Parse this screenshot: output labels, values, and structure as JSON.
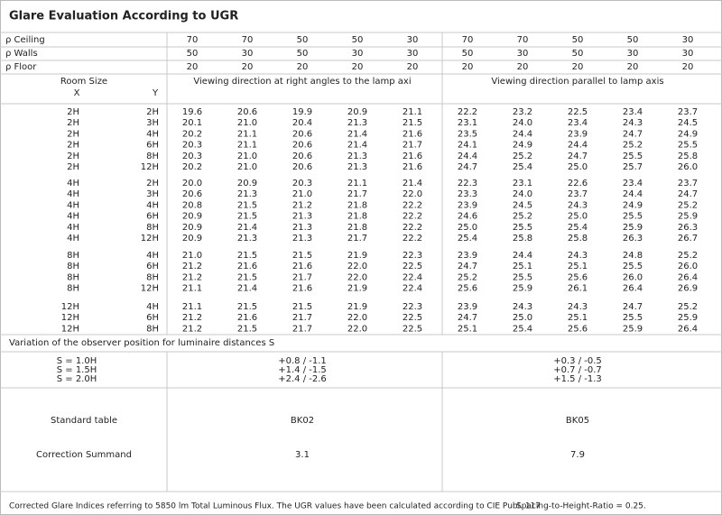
{
  "title": "Glare Evaluation According to UGR",
  "reflectances": [
    {
      "label": "ρ Ceiling",
      "values": [
        "70",
        "70",
        "50",
        "50",
        "30",
        "70",
        "70",
        "50",
        "50",
        "30"
      ]
    },
    {
      "label": "ρ Walls",
      "values": [
        "50",
        "30",
        "50",
        "30",
        "30",
        "50",
        "30",
        "50",
        "30",
        "30"
      ]
    },
    {
      "label": "ρ Floor",
      "values": [
        "20",
        "20",
        "20",
        "20",
        "20",
        "20",
        "20",
        "20",
        "20",
        "20"
      ]
    }
  ],
  "header": {
    "room_size": "Room Size",
    "x": "X",
    "y": "Y",
    "perpendicular": "Viewing direction at right angles to the lamp axi",
    "parallel": "Viewing direction parallel to lamp axis"
  },
  "blocks": [
    [
      {
        "x": "2H",
        "y": "2H",
        "values": [
          "19.6",
          "20.6",
          "19.9",
          "20.9",
          "21.1",
          "22.2",
          "23.2",
          "22.5",
          "23.4",
          "23.7"
        ]
      },
      {
        "x": "2H",
        "y": "3H",
        "values": [
          "20.1",
          "21.0",
          "20.4",
          "21.3",
          "21.5",
          "23.1",
          "24.0",
          "23.4",
          "24.3",
          "24.5"
        ]
      },
      {
        "x": "2H",
        "y": "4H",
        "values": [
          "20.2",
          "21.1",
          "20.6",
          "21.4",
          "21.6",
          "23.5",
          "24.4",
          "23.9",
          "24.7",
          "24.9"
        ]
      },
      {
        "x": "2H",
        "y": "6H",
        "values": [
          "20.3",
          "21.1",
          "20.6",
          "21.4",
          "21.7",
          "24.1",
          "24.9",
          "24.4",
          "25.2",
          "25.5"
        ]
      },
      {
        "x": "2H",
        "y": "8H",
        "values": [
          "20.3",
          "21.0",
          "20.6",
          "21.3",
          "21.6",
          "24.4",
          "25.2",
          "24.7",
          "25.5",
          "25.8"
        ]
      },
      {
        "x": "2H",
        "y": "12H",
        "values": [
          "20.2",
          "21.0",
          "20.6",
          "21.3",
          "21.6",
          "24.7",
          "25.4",
          "25.0",
          "25.7",
          "26.0"
        ]
      }
    ],
    [
      {
        "x": "4H",
        "y": "2H",
        "values": [
          "20.0",
          "20.9",
          "20.3",
          "21.1",
          "21.4",
          "22.3",
          "23.1",
          "22.6",
          "23.4",
          "23.7"
        ]
      },
      {
        "x": "4H",
        "y": "3H",
        "values": [
          "20.6",
          "21.3",
          "21.0",
          "21.7",
          "22.0",
          "23.3",
          "24.0",
          "23.7",
          "24.4",
          "24.7"
        ]
      },
      {
        "x": "4H",
        "y": "4H",
        "values": [
          "20.8",
          "21.5",
          "21.2",
          "21.8",
          "22.2",
          "23.9",
          "24.5",
          "24.3",
          "24.9",
          "25.2"
        ]
      },
      {
        "x": "4H",
        "y": "6H",
        "values": [
          "20.9",
          "21.5",
          "21.3",
          "21.8",
          "22.2",
          "24.6",
          "25.2",
          "25.0",
          "25.5",
          "25.9"
        ]
      },
      {
        "x": "4H",
        "y": "8H",
        "values": [
          "20.9",
          "21.4",
          "21.3",
          "21.8",
          "22.2",
          "25.0",
          "25.5",
          "25.4",
          "25.9",
          "26.3"
        ]
      },
      {
        "x": "4H",
        "y": "12H",
        "values": [
          "20.9",
          "21.3",
          "21.3",
          "21.7",
          "22.2",
          "25.4",
          "25.8",
          "25.8",
          "26.3",
          "26.7"
        ]
      }
    ],
    [
      {
        "x": "8H",
        "y": "4H",
        "values": [
          "21.0",
          "21.5",
          "21.5",
          "21.9",
          "22.3",
          "23.9",
          "24.4",
          "24.3",
          "24.8",
          "25.2"
        ]
      },
      {
        "x": "8H",
        "y": "6H",
        "values": [
          "21.2",
          "21.6",
          "21.6",
          "22.0",
          "22.5",
          "24.7",
          "25.1",
          "25.1",
          "25.5",
          "26.0"
        ]
      },
      {
        "x": "8H",
        "y": "8H",
        "values": [
          "21.2",
          "21.5",
          "21.7",
          "22.0",
          "22.4",
          "25.2",
          "25.5",
          "25.6",
          "26.0",
          "26.4"
        ]
      },
      {
        "x": "8H",
        "y": "12H",
        "values": [
          "21.1",
          "21.4",
          "21.6",
          "21.9",
          "22.4",
          "25.6",
          "25.9",
          "26.1",
          "26.4",
          "26.9"
        ]
      }
    ],
    [
      {
        "x": "12H",
        "y": "4H",
        "values": [
          "21.1",
          "21.5",
          "21.5",
          "21.9",
          "22.3",
          "23.9",
          "24.3",
          "24.3",
          "24.7",
          "25.2"
        ]
      },
      {
        "x": "12H",
        "y": "6H",
        "values": [
          "21.2",
          "21.6",
          "21.7",
          "22.0",
          "22.5",
          "24.7",
          "25.0",
          "25.1",
          "25.5",
          "25.9"
        ]
      },
      {
        "x": "12H",
        "y": "8H",
        "values": [
          "21.2",
          "21.5",
          "21.7",
          "22.0",
          "22.5",
          "25.1",
          "25.4",
          "25.6",
          "25.9",
          "26.4"
        ]
      }
    ]
  ],
  "variation": {
    "title": "Variation of the observer position for luminaire distances S",
    "rows": [
      {
        "label": "S = 1.0H",
        "perpendicular": "+0.8 / -1.1",
        "parallel": "+0.3 / -0.5"
      },
      {
        "label": "S = 1.5H",
        "perpendicular": "+1.4 / -1.5",
        "parallel": "+0.7 / -0.7"
      },
      {
        "label": "S = 2.0H",
        "perpendicular": "+2.4 / -2.6",
        "parallel": "+1.5 / -1.3"
      }
    ]
  },
  "standard_table": {
    "label": "Standard table",
    "perpendicular": "BK02",
    "parallel": "BK05"
  },
  "correction": {
    "label": "Correction Summand",
    "perpendicular": "3.1",
    "parallel": "7.9"
  },
  "footer": {
    "note": "Corrected Glare Indices referring to 5850 lm Total Luminous Flux. The UGR values have been calculated according to CIE Publ. 117",
    "ratio": "Spacing-to-Height-Ratio = 0.25."
  }
}
